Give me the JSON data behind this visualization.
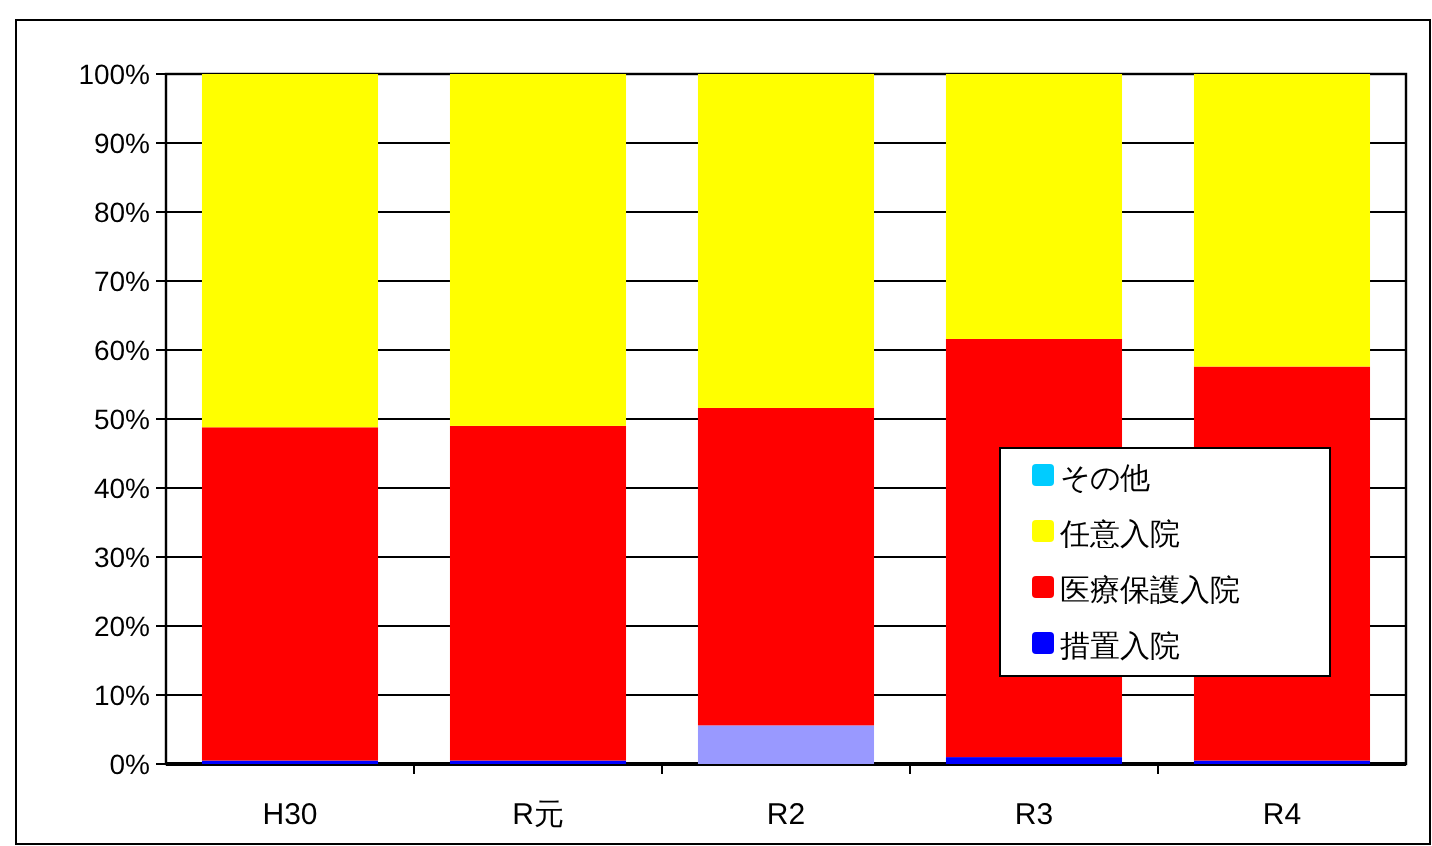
{
  "chart_data": {
    "type": "bar",
    "stacked": true,
    "categories": [
      "H30",
      "R元",
      "R2",
      "R3",
      "R4"
    ],
    "series": [
      {
        "name": "措置入院",
        "color": "#0000ff",
        "colors": [
          "#0000ff",
          "#0000ff",
          "#9999ff",
          "#0000ff",
          "#0000ff"
        ],
        "values": [
          0.5,
          0.5,
          5.6,
          1.0,
          0.5
        ]
      },
      {
        "name": "医療保護入院",
        "color": "#ff0000",
        "values": [
          48.3,
          48.5,
          46.0,
          60.6,
          57.1
        ]
      },
      {
        "name": "任意入院",
        "color": "#ffff00",
        "values": [
          51.2,
          51.0,
          48.4,
          38.4,
          42.4
        ]
      },
      {
        "name": "その他",
        "color": "#00ccff",
        "values": [
          0,
          0,
          0,
          0,
          0
        ]
      }
    ],
    "ylim": [
      0,
      100
    ],
    "yticks": [
      {
        "value": 0,
        "label": "0%"
      },
      {
        "value": 10,
        "label": "10%"
      },
      {
        "value": 20,
        "label": "20%"
      },
      {
        "value": 30,
        "label": "30%"
      },
      {
        "value": 40,
        "label": "40%"
      },
      {
        "value": 50,
        "label": "50%"
      },
      {
        "value": 60,
        "label": "60%"
      },
      {
        "value": 70,
        "label": "70%"
      },
      {
        "value": 80,
        "label": "80%"
      },
      {
        "value": 90,
        "label": "90%"
      },
      {
        "value": 100,
        "label": "100%"
      }
    ],
    "grid": "y",
    "legend": "bottom right"
  }
}
